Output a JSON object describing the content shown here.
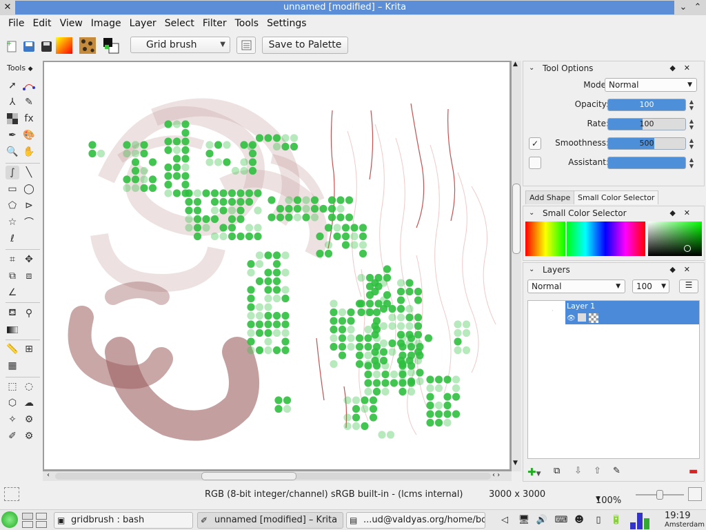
{
  "window": {
    "title": "unnamed [modified] – Krita"
  },
  "menubar": {
    "items": [
      "File",
      "Edit",
      "View",
      "Image",
      "Layer",
      "Select",
      "Filter",
      "Tools",
      "Settings"
    ]
  },
  "toolbar": {
    "brush_preset": "Grid brush",
    "save_palette_label": "Save to Palette"
  },
  "toolbox": {
    "title": "Tools"
  },
  "tool_options": {
    "title": "Tool Options",
    "mode_label": "Mode:",
    "mode_value": "Normal",
    "opacity_label": "Opacity:",
    "opacity_value": "100",
    "opacity_fraction": 1.0,
    "rate_label": "Rate:",
    "rate_value": "100",
    "rate_fraction": 0.45,
    "smoothness_label": "Smoothness:",
    "smoothness_value": "500",
    "smoothness_fraction": 0.6,
    "assistant_label": "Assistant:",
    "assistant_fraction": 1.0
  },
  "tabs": {
    "add_shape": "Add Shape",
    "small_color_selector": "Small Color Selector"
  },
  "color_selector": {
    "title": "Small Color Selector"
  },
  "layers": {
    "title": "Layers",
    "blend_mode": "Normal",
    "opacity": "100",
    "items": [
      {
        "name": "Layer 1"
      }
    ]
  },
  "statusbar": {
    "color_space": "RGB (8-bit integer/channel)  sRGB built-in - (lcms internal)",
    "dimensions": "3000 x 3000",
    "zoom": "100%"
  },
  "taskbar": {
    "tasks": [
      "gridbrush : bash",
      "unnamed [modified] – Krita",
      "...ud@valdyas.org/home/bo"
    ],
    "clock_time": "19:19",
    "clock_city": "Amsterdam"
  },
  "colors": {
    "accent": "#4d8fd9",
    "title_bar": "#5b8ed6",
    "grid_green": "#2fbf3f",
    "stroke_brown": "#a46a6a"
  }
}
